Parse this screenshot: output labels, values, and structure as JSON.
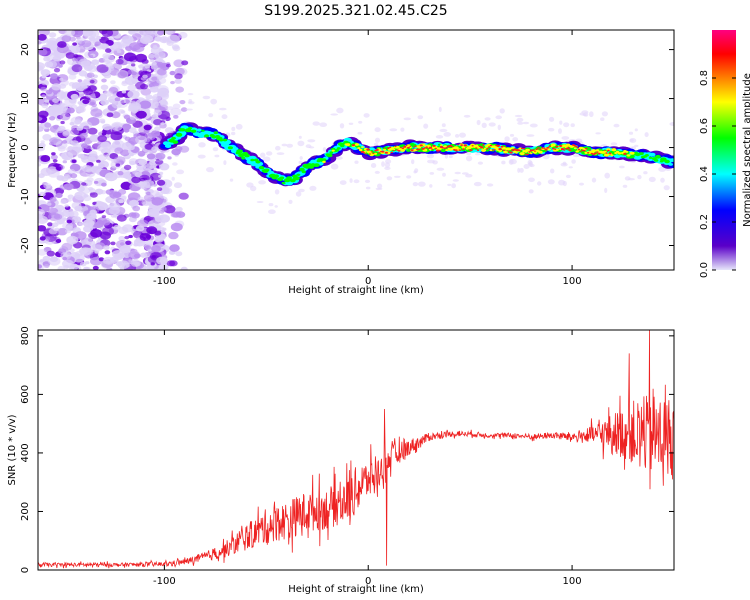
{
  "chart_data": [
    {
      "type": "heatmap",
      "title": "S199.2025.321.02.45.C25",
      "xlabel": "Height of straight line (km)",
      "ylabel": "Frequency (Hz)",
      "xlim": [
        -162,
        150
      ],
      "ylim": [
        -25,
        24
      ],
      "xticks": [
        -100,
        0,
        100
      ],
      "xtick_labels": [
        "-100",
        "0",
        "100"
      ],
      "yticks": [
        -20,
        -10,
        0,
        10,
        20
      ],
      "ytick_labels": [
        "-20",
        "-10",
        "0",
        "10",
        "20"
      ],
      "colorbar": {
        "label": "Normalized spectral amplitude",
        "range": [
          0,
          1
        ],
        "ticks": [
          0.0,
          0.2,
          0.4,
          0.6,
          0.8
        ],
        "tick_labels": [
          "0.0",
          "0.2",
          "0.4",
          "0.6",
          "0.8"
        ],
        "colors": [
          "#e6e6fa",
          "#5a00c8",
          "#0000ff",
          "#00ffff",
          "#00ff00",
          "#ffff00",
          "#ff8000",
          "#ff0000",
          "#ff0080"
        ]
      },
      "noise_region_x": [
        -162,
        -100
      ],
      "signal_trace": {
        "x": [
          -100,
          -95,
          -90,
          -85,
          -80,
          -75,
          -70,
          -65,
          -60,
          -55,
          -50,
          -45,
          -40,
          -35,
          -30,
          -25,
          -20,
          -15,
          -10,
          -5,
          0,
          10,
          20,
          30,
          40,
          50,
          60,
          70,
          80,
          90,
          100,
          110,
          120,
          130,
          140,
          150
        ],
        "freq": [
          0.5,
          1.5,
          4,
          3,
          3,
          2.5,
          1,
          -0.5,
          -2,
          -3,
          -5,
          -6,
          -7,
          -6,
          -4,
          -3,
          -2,
          0,
          1,
          0,
          -1,
          -0.5,
          0,
          0,
          0,
          0,
          0,
          -0.5,
          -1,
          0,
          0,
          -1,
          -1,
          -1.5,
          -2,
          -3
        ],
        "amplitude": [
          0.3,
          0.35,
          0.4,
          0.45,
          0.45,
          0.45,
          0.42,
          0.4,
          0.45,
          0.45,
          0.4,
          0.4,
          0.45,
          0.5,
          0.45,
          0.5,
          0.5,
          0.55,
          0.6,
          0.75,
          0.9,
          0.9,
          0.88,
          0.92,
          0.85,
          0.85,
          0.88,
          0.9,
          0.92,
          0.85,
          0.85,
          0.88,
          0.75,
          0.55,
          0.4,
          0.35
        ]
      }
    },
    {
      "type": "line",
      "xlabel": "Height of straight line (km)",
      "ylabel": "SNR (10 * v/v)",
      "xlim": [
        -162,
        150
      ],
      "ylim": [
        0,
        820
      ],
      "xticks": [
        -100,
        0,
        100
      ],
      "xtick_labels": [
        "-100",
        "0",
        "100"
      ],
      "yticks": [
        0,
        200,
        400,
        600,
        800
      ],
      "ytick_labels": [
        "0",
        "200",
        "400",
        "600",
        "800"
      ],
      "color": "#ee2222",
      "envelope": {
        "x": [
          -162,
          -140,
          -120,
          -100,
          -90,
          -80,
          -70,
          -60,
          -50,
          -40,
          -30,
          -20,
          -10,
          -5,
          0,
          5,
          10,
          20,
          30,
          40,
          50,
          60,
          70,
          80,
          90,
          100,
          110,
          120,
          130,
          140,
          150
        ],
        "mean": [
          18,
          18,
          18,
          20,
          28,
          45,
          70,
          110,
          150,
          170,
          200,
          210,
          240,
          280,
          310,
          330,
          380,
          420,
          455,
          465,
          465,
          460,
          460,
          455,
          460,
          455,
          460,
          470,
          470,
          460,
          450
        ],
        "spread": [
          12,
          12,
          12,
          14,
          18,
          30,
          50,
          80,
          110,
          120,
          130,
          130,
          140,
          150,
          120,
          100,
          80,
          50,
          25,
          18,
          15,
          15,
          15,
          18,
          20,
          30,
          60,
          120,
          200,
          260,
          260
        ]
      },
      "notable_points": [
        {
          "x": 8,
          "y": 550
        },
        {
          "x": 9,
          "y": 15
        },
        {
          "x": 128,
          "y": 740
        },
        {
          "x": 138,
          "y": 820
        }
      ]
    }
  ]
}
